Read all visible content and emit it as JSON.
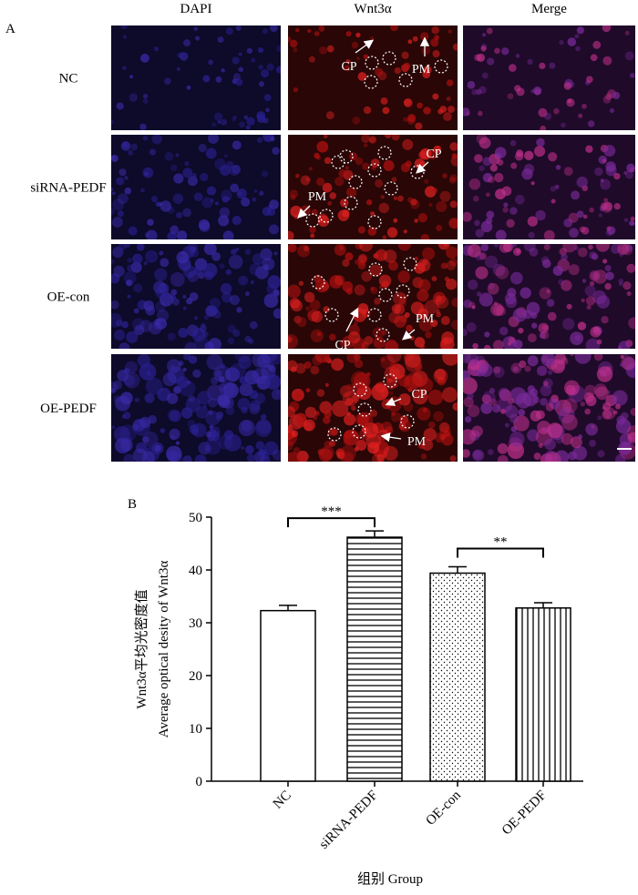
{
  "panel_a": {
    "label": "A",
    "columns": [
      "DAPI",
      "Wnt3α",
      "Merge"
    ],
    "rows": [
      "NC",
      "siRNA-PEDF",
      "OE-con",
      "OE-PEDF"
    ],
    "annotations": [
      [
        "CP",
        "PM"
      ],
      [
        "CP",
        "PM"
      ],
      [
        "CP",
        "PM"
      ],
      [
        "CP",
        "PM"
      ]
    ]
  },
  "chart_data": {
    "type": "bar",
    "panel_label": "B",
    "y_label_lines": [
      "Wnt3α平均光密度值",
      "Average optical desity of Wnt3α"
    ],
    "x_label": "组别 Group",
    "categories": [
      "NC",
      "siRNA-PEDF",
      "OE-con",
      "OE-PEDF"
    ],
    "values": [
      32.3,
      46.2,
      39.4,
      32.8
    ],
    "errors": [
      1.0,
      1.2,
      1.2,
      1.0
    ],
    "patterns": [
      "none",
      "horizontal",
      "dots",
      "vertical"
    ],
    "color": "#000000",
    "ylim": [
      0,
      50
    ],
    "yticks": [
      0,
      10,
      20,
      30,
      40,
      50
    ],
    "significance": [
      {
        "from": 0,
        "to": 1,
        "label": "***"
      },
      {
        "from": 2,
        "to": 3,
        "label": "**"
      }
    ]
  }
}
